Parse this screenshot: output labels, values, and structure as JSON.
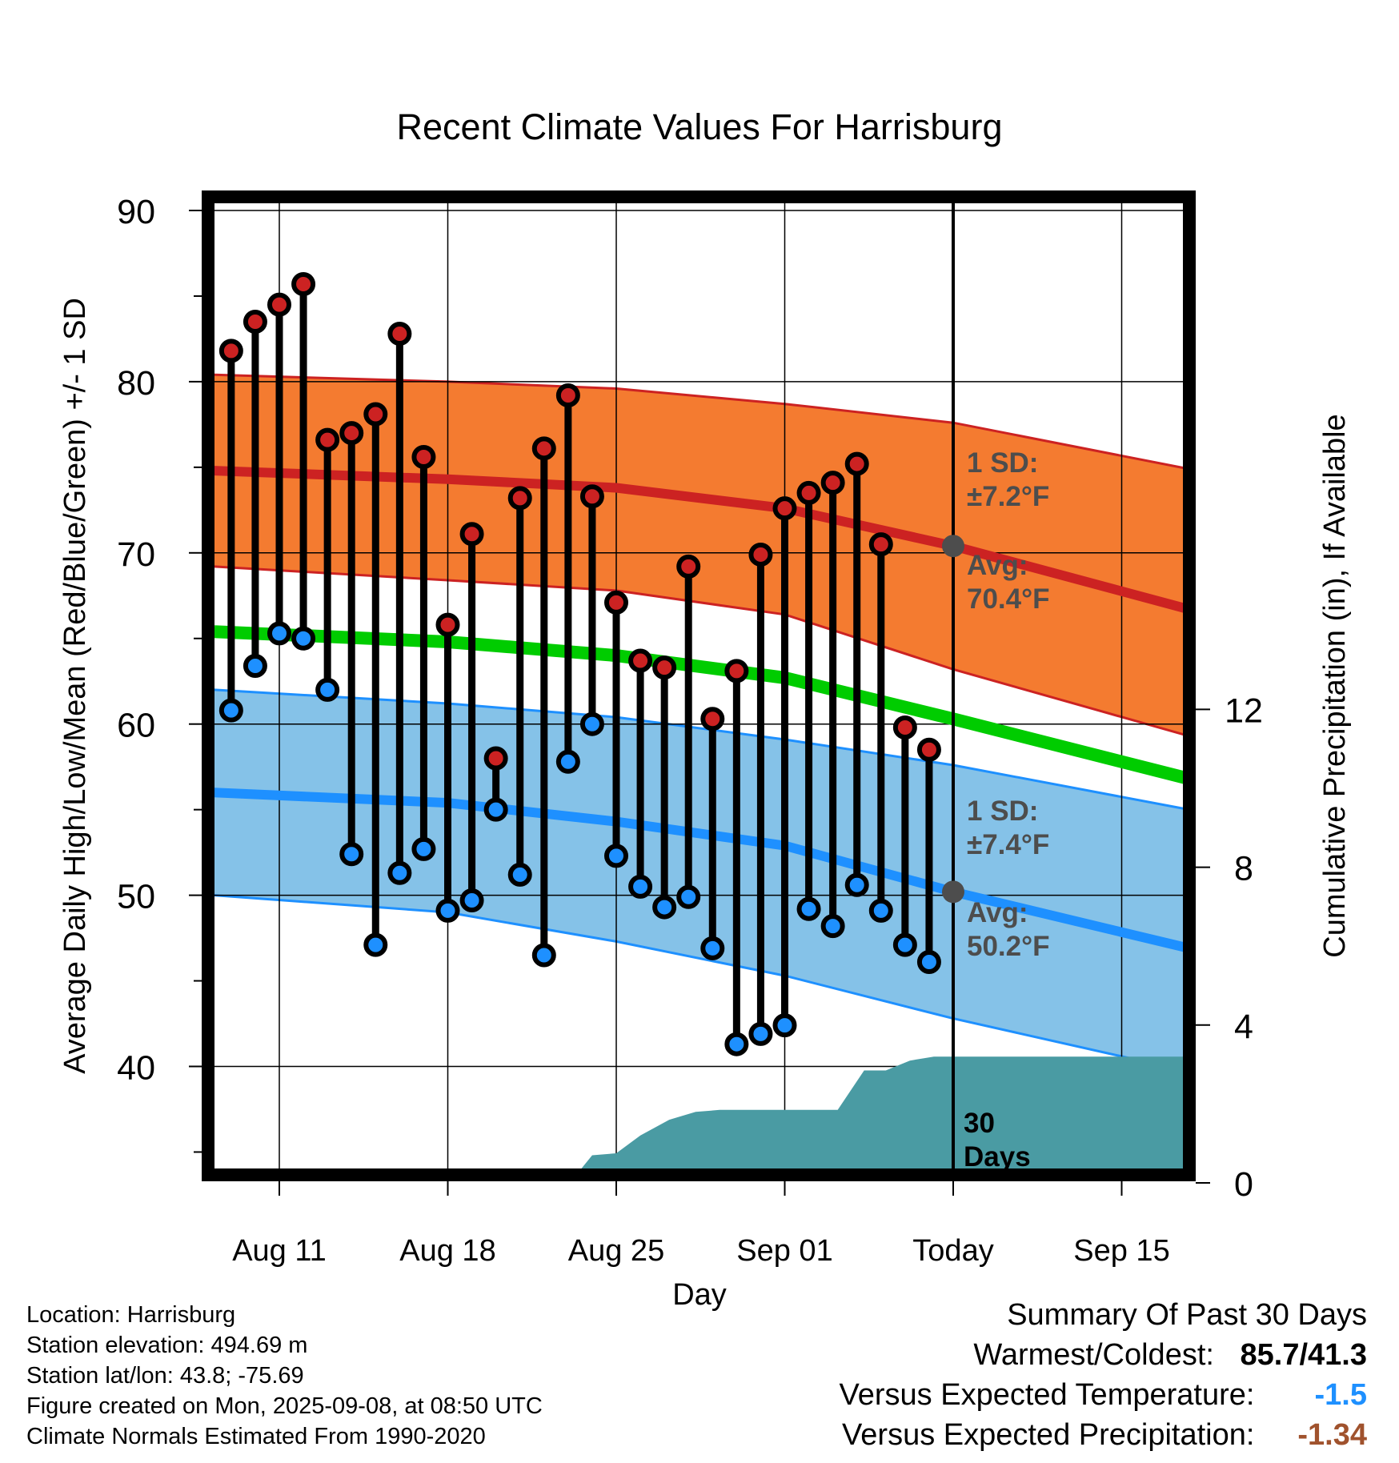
{
  "chart_data": {
    "type": "line",
    "title": "Recent Climate Values For Harrisburg",
    "xlabel": "Day",
    "ylabel": "Average Daily High/Low/Mean (Red/Blue/Green) +/- 1 SD",
    "y2label": "Cumulative Precipitation (in), If Available",
    "ylim": [
      34,
      90
    ],
    "y_ticks": [
      40,
      50,
      60,
      70,
      80,
      90
    ],
    "y2lim": [
      0,
      27
    ],
    "y2_ticks": [
      0,
      4,
      8,
      12
    ],
    "x_tick_labels": [
      "Aug 11",
      "Aug 18",
      "Aug 25",
      "Sep 01",
      "Today",
      "Sep 15"
    ],
    "x_tick_days": [
      3,
      10,
      17,
      24,
      31,
      38
    ],
    "x_range_days": [
      0.3,
      40.8
    ],
    "today_day": 31,
    "days": [
      "Aug 09",
      "Aug 10",
      "Aug 11",
      "Aug 12",
      "Aug 13",
      "Aug 14",
      "Aug 15",
      "Aug 16",
      "Aug 17",
      "Aug 18",
      "Aug 19",
      "Aug 20",
      "Aug 21",
      "Aug 22",
      "Aug 23",
      "Aug 24",
      "Aug 25",
      "Aug 26",
      "Aug 27",
      "Aug 28",
      "Aug 29",
      "Aug 30",
      "Aug 31",
      "Sep 01",
      "Sep 02",
      "Sep 03",
      "Sep 04",
      "Sep 05",
      "Sep 06",
      "Sep 07"
    ],
    "daily_high": [
      81.8,
      83.5,
      84.5,
      85.7,
      76.6,
      77.0,
      78.1,
      82.8,
      75.6,
      65.8,
      71.1,
      58.0,
      73.2,
      76.1,
      79.2,
      73.3,
      67.1,
      63.7,
      63.3,
      69.2,
      60.3,
      63.1,
      69.9,
      72.6,
      73.5,
      74.1,
      75.2,
      70.5,
      59.8,
      58.5
    ],
    "daily_low": [
      60.8,
      63.4,
      65.3,
      65.0,
      62.0,
      52.4,
      47.1,
      51.3,
      52.7,
      49.1,
      49.7,
      55.0,
      51.2,
      46.5,
      57.8,
      60.0,
      52.3,
      50.5,
      49.3,
      49.9,
      46.9,
      41.3,
      41.9,
      42.4,
      49.2,
      48.2,
      50.6,
      49.1,
      47.1,
      46.1
    ],
    "normal_high": [
      74.8,
      74.3,
      73.8,
      72.6,
      70.4,
      66.7
    ],
    "normal_low": [
      56.0,
      55.4,
      54.3,
      52.9,
      50.2,
      46.9
    ],
    "normal_mean": [
      65.4,
      64.8,
      64.0,
      62.7,
      60.3,
      56.8
    ],
    "normal_days": [
      0.3,
      10,
      17,
      24,
      31,
      40.8
    ],
    "high_sd_band": {
      "upper": [
        80.4,
        80.0,
        79.6,
        78.7,
        77.6,
        74.9
      ],
      "lower": [
        69.2,
        68.4,
        67.8,
        66.4,
        63.2,
        59.3
      ]
    },
    "low_sd_band": {
      "upper": [
        62.0,
        61.2,
        60.4,
        59.1,
        57.6,
        55.0
      ],
      "lower": [
        50.0,
        49.0,
        47.3,
        45.3,
        42.8,
        39.7
      ]
    },
    "precip_days": [
      11.1,
      12,
      13,
      14.3,
      15.2,
      16,
      17,
      18,
      19.2,
      20.3,
      21.3,
      22.3,
      23.3,
      24.3,
      25.3,
      26.2,
      27.3,
      28.2,
      29.2,
      30.2,
      31,
      40.8
    ],
    "precip_cum": [
      0.0,
      0.1,
      0.1,
      0.1,
      0.1,
      0.7,
      0.75,
      1.2,
      1.6,
      1.8,
      1.85,
      1.85,
      1.85,
      1.85,
      1.85,
      1.85,
      2.85,
      2.85,
      3.1,
      3.2,
      3.2,
      3.2
    ],
    "colors": {
      "high": "#cc2222",
      "low": "#1e90ff",
      "mean": "#00cc00",
      "high_band": "#f47b30",
      "low_band": "#85c2e8",
      "precip": "#4a9ba3",
      "label": "#4d4d4d"
    },
    "annotations": {
      "high_sd": [
        "1 SD:",
        "±7.2°F"
      ],
      "high_avg": [
        "Avg:",
        "70.4°F"
      ],
      "low_sd": [
        "1 SD:",
        "±7.4°F"
      ],
      "low_avg": [
        "Avg:",
        "50.2°F"
      ],
      "days_label": [
        "30",
        "Days"
      ]
    }
  },
  "info": {
    "location": "Location: Harrisburg",
    "elevation": "Station elevation: 494.69 m",
    "latlon": "Station lat/lon: 43.8; -75.69",
    "created": "Figure created on Mon, 2025-09-08, at 08:50 UTC",
    "normals": "Climate Normals Estimated From 1990-2020"
  },
  "summary": {
    "title": "Summary Of Past 30 Days",
    "warm_cold_label": "Warmest/Coldest:",
    "warm_cold_value": "85.7/41.3",
    "temp_label": "Versus Expected Temperature:",
    "temp_value": "-1.5",
    "temp_color": "#1e90ff",
    "precip_label": "Versus Expected Precipitation:",
    "precip_value": "-1.34",
    "precip_color": "#a0522d"
  }
}
